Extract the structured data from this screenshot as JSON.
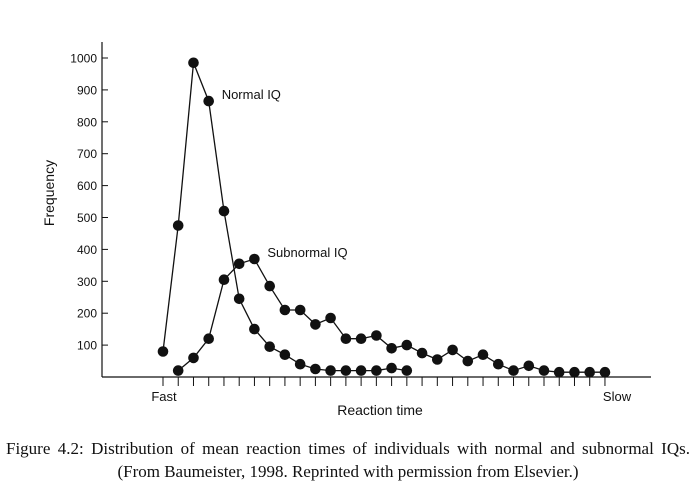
{
  "chart_data": {
    "type": "line",
    "ylabel": "Frequency",
    "xlabel": "Reaction time",
    "x_start_label": "Fast",
    "x_end_label": "Slow",
    "ylim": [
      0,
      1000
    ],
    "y_ticks": [
      100,
      200,
      300,
      400,
      500,
      600,
      700,
      800,
      900,
      1000
    ],
    "x_slots": 30,
    "grid": false,
    "series": [
      {
        "name": "Normal IQ",
        "x": [
          0,
          1,
          2,
          3,
          4,
          5,
          6,
          7,
          8,
          9,
          10,
          11,
          12,
          13,
          14,
          15,
          16
        ],
        "values": [
          80,
          475,
          985,
          865,
          520,
          245,
          150,
          95,
          70,
          40,
          25,
          20,
          20,
          20,
          20,
          28,
          20
        ],
        "label_at_index": 3
      },
      {
        "name": "Subnormal IQ",
        "x": [
          1,
          2,
          3,
          4,
          5,
          6,
          7,
          8,
          9,
          10,
          11,
          12,
          13,
          14,
          15,
          16,
          17,
          18,
          19,
          20,
          21,
          22,
          23,
          24,
          25,
          26,
          27,
          28,
          29
        ],
        "values": [
          20,
          60,
          120,
          305,
          355,
          370,
          285,
          210,
          210,
          165,
          185,
          120,
          120,
          130,
          90,
          100,
          75,
          55,
          85,
          50,
          70,
          40,
          20,
          35,
          20,
          15,
          15,
          15,
          15
        ],
        "label_at_index": 5
      }
    ]
  },
  "caption": "Figure 4.2: Distribution of mean reaction times of individuals with normal and subnormal IQs. (From Baumeister, 1998. Reprinted with permission from Elsevier.)"
}
